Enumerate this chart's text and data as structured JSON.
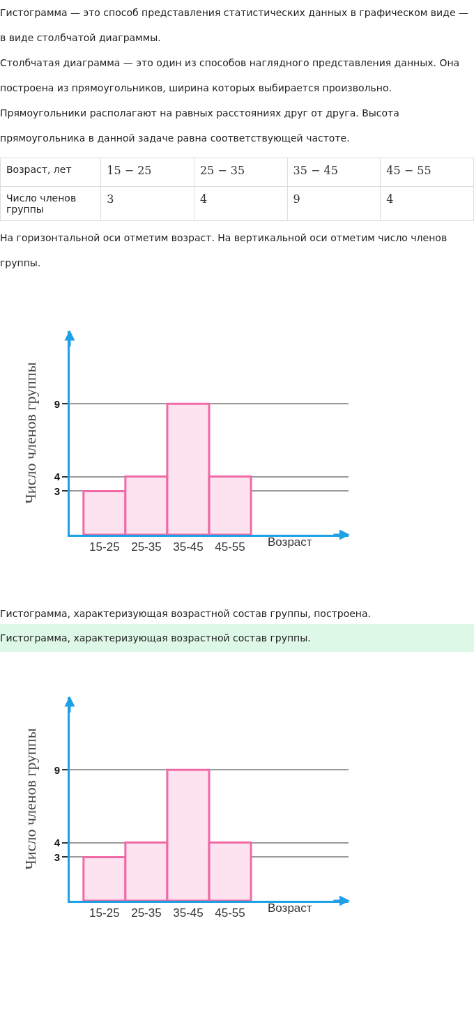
{
  "chart_data": [
    {
      "type": "other",
      "annotations": [
        "Гистограмма — это способ представления статистических данных в графическом виде — в виде столбчатой диаграммы.",
        "Столбчатая диаграмма — это один из способов наглядного представления данных. Она построена из прямоугольников, ширина которых выбирается произвольно. Прямоугольники располагают на равных расстояниях друг от друга. Высота прямоугольника в данной задаче равна соответствующей частоте.",
        "Возраст, лет",
        "15 − 25",
        "25 − 35",
        "35 − 45",
        "45 − 55",
        "Число членов группы",
        "3",
        "4",
        "9",
        "4",
        "На горизонтальной оси отметим возраст. На вертикальной оси отметим число членов группы."
      ]
    },
    {
      "type": "bar",
      "categories": [
        "15-25",
        "25-35",
        "35-45",
        "45-55"
      ],
      "values": [
        3,
        4,
        9,
        4
      ],
      "color": "#fde3f0",
      "xlabel": "Возраст",
      "ylabel": "Число членов группы",
      "ylim": [
        0,
        14
      ],
      "yticks": [
        3,
        4,
        9
      ],
      "grid": "y"
    },
    {
      "type": "other",
      "annotations": [
        "Гистограмма, характеризующая возрастной состав группы, построена.",
        "Гистограмма, характеризующая возрастной состав группы."
      ]
    },
    {
      "type": "bar",
      "categories": [
        "15-25",
        "25-35",
        "35-45",
        "45-55"
      ],
      "values": [
        3,
        4,
        9,
        4
      ],
      "color": "#fde3f0",
      "xlabel": "Возраст",
      "ylabel": "Число членов группы",
      "ylim": [
        0,
        14
      ],
      "yticks": [
        3,
        4,
        9
      ],
      "grid": "y"
    }
  ]
}
